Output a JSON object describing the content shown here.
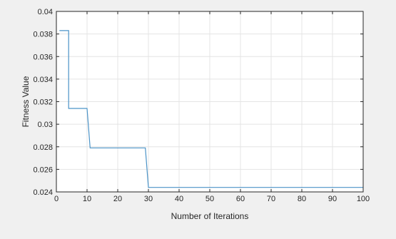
{
  "chart_data": {
    "type": "line",
    "title": "",
    "xlabel": "Number of Iterations",
    "ylabel": "Fitness Value",
    "xlim": [
      0,
      100
    ],
    "ylim": [
      0.024,
      0.04
    ],
    "xticks": [
      0,
      10,
      20,
      30,
      40,
      50,
      60,
      70,
      80,
      90,
      100
    ],
    "xtick_labels": [
      "0",
      "10",
      "20",
      "30",
      "40",
      "50",
      "60",
      "70",
      "80",
      "90",
      "100"
    ],
    "yticks": [
      0.024,
      0.026,
      0.028,
      0.03,
      0.032,
      0.034,
      0.036,
      0.038,
      0.04
    ],
    "ytick_labels": [
      "0.024",
      "0.026",
      "0.028",
      "0.03",
      "0.032",
      "0.034",
      "0.036",
      "0.038",
      "0.04"
    ],
    "grid": true,
    "series": [
      {
        "color": "#4b93c7",
        "x": [
          1,
          4,
          4,
          10,
          11,
          29,
          30,
          100
        ],
        "y": [
          0.0383,
          0.0383,
          0.0314,
          0.0314,
          0.0279,
          0.0279,
          0.0244,
          0.0244
        ]
      }
    ]
  },
  "colors": {
    "figure_background": "#f0f0f0",
    "axes_background": "#ffffff",
    "grid": "#e4e4e4",
    "axis": "#262626"
  }
}
